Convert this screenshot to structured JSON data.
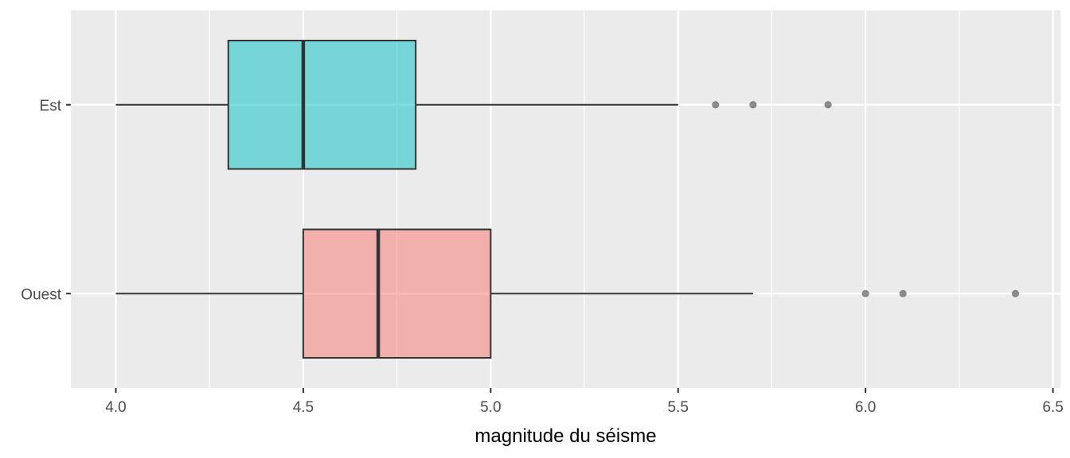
{
  "chart_data": {
    "type": "boxplot",
    "orientation": "horizontal",
    "title": "",
    "xlabel": "magnitude du séisme",
    "ylabel": "",
    "xlim": [
      3.88,
      6.52
    ],
    "x_ticks": [
      "4.0",
      "4.5",
      "5.0",
      "5.5",
      "6.0",
      "6.5"
    ],
    "x_tick_values": [
      4.0,
      4.5,
      5.0,
      5.5,
      6.0,
      6.5
    ],
    "grid": true,
    "legend": "none",
    "categories": [
      "Est",
      "Ouest"
    ],
    "series": [
      {
        "category": "Est",
        "color": "#00BFC4",
        "whisker_low": 4.0,
        "q1": 4.3,
        "median": 4.5,
        "q3": 4.8,
        "whisker_high": 5.5,
        "outliers": [
          5.6,
          5.7,
          5.9
        ]
      },
      {
        "category": "Ouest",
        "color": "#F8766D",
        "whisker_low": 4.0,
        "q1": 4.5,
        "median": 4.7,
        "q3": 5.0,
        "whisker_high": 5.7,
        "outliers": [
          6.0,
          6.1,
          6.4
        ]
      }
    ]
  }
}
